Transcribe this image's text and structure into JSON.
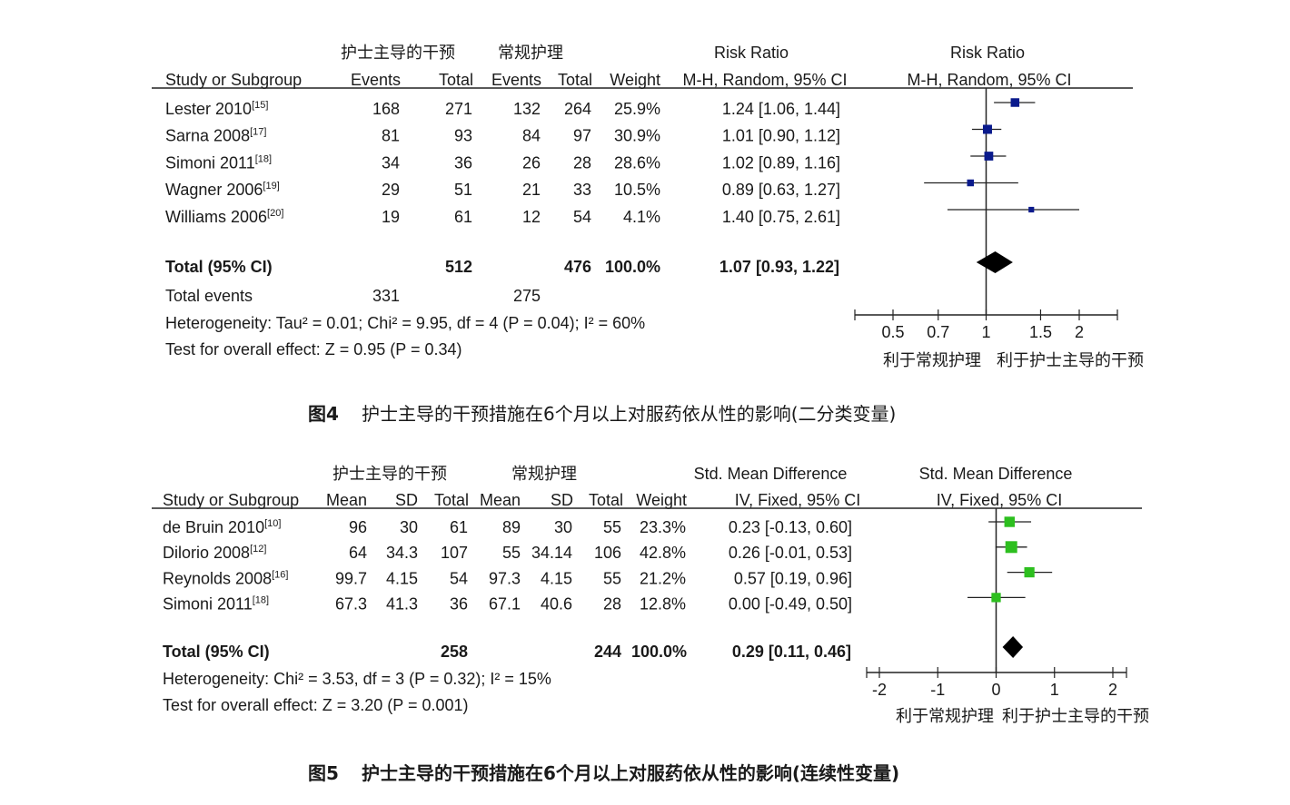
{
  "figure4": {
    "group_headers": [
      "护士主导的干预",
      "常规护理"
    ],
    "col_headers": [
      "Study or Subgroup",
      "Events",
      "Total",
      "Events",
      "Total",
      "Weight",
      "M-H, Random, 95% CI",
      "M-H, Random, 95% CI"
    ],
    "effect_header": "Risk Ratio",
    "plot_header": "Risk Ratio",
    "rows": [
      {
        "name": "Lester 2010",
        "ref": "[15]",
        "cells": [
          "168",
          "271",
          "132",
          "264",
          "25.9%"
        ],
        "ci_text": "1.24 [1.06, 1.44]"
      },
      {
        "name": "Sarna 2008",
        "ref": "[17]",
        "cells": [
          "81",
          "93",
          "84",
          "97",
          "30.9%"
        ],
        "ci_text": "1.01 [0.90, 1.12]"
      },
      {
        "name": "Simoni 2011",
        "ref": "[18]",
        "cells": [
          "34",
          "36",
          "26",
          "28",
          "28.6%"
        ],
        "ci_text": "1.02 [0.89, 1.16]"
      },
      {
        "name": "Wagner 2006",
        "ref": "[19]",
        "cells": [
          "29",
          "51",
          "21",
          "33",
          "10.5%"
        ],
        "ci_text": "0.89 [0.63, 1.27]"
      },
      {
        "name": "Williams 2006",
        "ref": "[20]",
        "cells": [
          "19",
          "61",
          "12",
          "54",
          "4.1%"
        ],
        "ci_text": "1.40 [0.75, 2.61]"
      }
    ],
    "total": {
      "label": "Total (95% CI)",
      "cells": [
        "",
        "512",
        "",
        "476",
        "100.0%"
      ],
      "ci_text": "1.07 [0.93, 1.22]"
    },
    "total_events": {
      "label": "Total events",
      "cells": [
        "331",
        "",
        "275",
        "",
        ""
      ]
    },
    "heterogeneity": "Heterogeneity: Tau² = 0.01; Chi² = 9.95, df = 4 (P = 0.04); I² = 60%",
    "overall_effect": "Test for overall effect: Z = 0.95 (P = 0.34)",
    "axis_ticks": [
      "0.5",
      "0.7",
      "1",
      "1.5",
      "2"
    ],
    "axis_left_label": "利于常规护理",
    "axis_right_label": "利于护士主导的干预",
    "caption_num": "图4",
    "caption": "护士主导的干预措施在6个月以上对服药依从性的影响(二分类变量)"
  },
  "figure5": {
    "group_headers": [
      "护士主导的干预",
      "常规护理"
    ],
    "col_headers": [
      "Study or Subgroup",
      "Mean",
      "SD",
      "Total",
      "Mean",
      "SD",
      "Total",
      "Weight",
      "IV, Fixed, 95% CI",
      "IV, Fixed, 95% CI"
    ],
    "effect_header": "Std. Mean Difference",
    "plot_header": "Std. Mean Difference",
    "rows": [
      {
        "name": "de Bruin 2010",
        "ref": "[10]",
        "cells": [
          "96",
          "30",
          "61",
          "89",
          "30",
          "55",
          "23.3%"
        ],
        "ci_text": "0.23 [-0.13, 0.60]"
      },
      {
        "name": "Dilorio 2008",
        "ref": "[12]",
        "cells": [
          "64",
          "34.3",
          "107",
          "55",
          "34.14",
          "106",
          "42.8%"
        ],
        "ci_text": "0.26 [-0.01, 0.53]"
      },
      {
        "name": "Reynolds 2008",
        "ref": "[16]",
        "cells": [
          "99.7",
          "4.15",
          "54",
          "97.3",
          "4.15",
          "55",
          "21.2%"
        ],
        "ci_text": "0.57 [0.19, 0.96]"
      },
      {
        "name": "Simoni 2011",
        "ref": "[18]",
        "cells": [
          "67.3",
          "41.3",
          "36",
          "67.1",
          "40.6",
          "28",
          "12.8%"
        ],
        "ci_text": "0.00 [-0.49, 0.50]"
      }
    ],
    "total": {
      "label": "Total (95% CI)",
      "cells": [
        "",
        "",
        "258",
        "",
        "",
        "244",
        "100.0%"
      ],
      "ci_text": "0.29 [0.11, 0.46]"
    },
    "heterogeneity": "Heterogeneity: Chi² = 3.53, df = 3 (P = 0.32); I² = 15%",
    "overall_effect": "Test for overall effect: Z = 3.20 (P = 0.001)",
    "axis_ticks": [
      "-2",
      "-1",
      "0",
      "1",
      "2"
    ],
    "axis_left_label": "利于常规护理",
    "axis_right_label": "利于护士主导的干预",
    "caption_num": "图5",
    "caption": "护士主导的干预措施在6个月以上对服药依从性的影响(连续性变量)"
  },
  "chart_data": [
    {
      "type": "forest",
      "measure": "Risk Ratio",
      "method": "M-H, Random, 95% CI",
      "scale": "log",
      "xlim": [
        0.4,
        2.5
      ],
      "null_value": 1,
      "marker_color": "#0a1a8c",
      "studies": [
        {
          "study": "Lester 2010",
          "estimate": 1.24,
          "lower": 1.06,
          "upper": 1.44,
          "weight": 25.9
        },
        {
          "study": "Sarna 2008",
          "estimate": 1.01,
          "lower": 0.9,
          "upper": 1.12,
          "weight": 30.9
        },
        {
          "study": "Simoni 2011",
          "estimate": 1.02,
          "lower": 0.89,
          "upper": 1.16,
          "weight": 28.6
        },
        {
          "study": "Wagner 2006",
          "estimate": 0.89,
          "lower": 0.63,
          "upper": 1.27,
          "weight": 10.5
        },
        {
          "study": "Williams 2006",
          "estimate": 1.4,
          "lower": 0.75,
          "upper": 2.61,
          "weight": 4.1
        }
      ],
      "pooled": {
        "estimate": 1.07,
        "lower": 0.93,
        "upper": 1.22
      }
    },
    {
      "type": "forest",
      "measure": "Std. Mean Difference",
      "method": "IV, Fixed, 95% CI",
      "scale": "linear",
      "xlim": [
        -2.2,
        2.2
      ],
      "null_value": 0,
      "marker_color": "#2dbf1f",
      "studies": [
        {
          "study": "de Bruin 2010",
          "estimate": 0.23,
          "lower": -0.13,
          "upper": 0.6,
          "weight": 23.3
        },
        {
          "study": "Dilorio 2008",
          "estimate": 0.26,
          "lower": -0.01,
          "upper": 0.53,
          "weight": 42.8
        },
        {
          "study": "Reynolds 2008",
          "estimate": 0.57,
          "lower": 0.19,
          "upper": 0.96,
          "weight": 21.2
        },
        {
          "study": "Simoni 2011",
          "estimate": 0.0,
          "lower": -0.49,
          "upper": 0.5,
          "weight": 12.8
        }
      ],
      "pooled": {
        "estimate": 0.29,
        "lower": 0.11,
        "upper": 0.46
      }
    }
  ]
}
